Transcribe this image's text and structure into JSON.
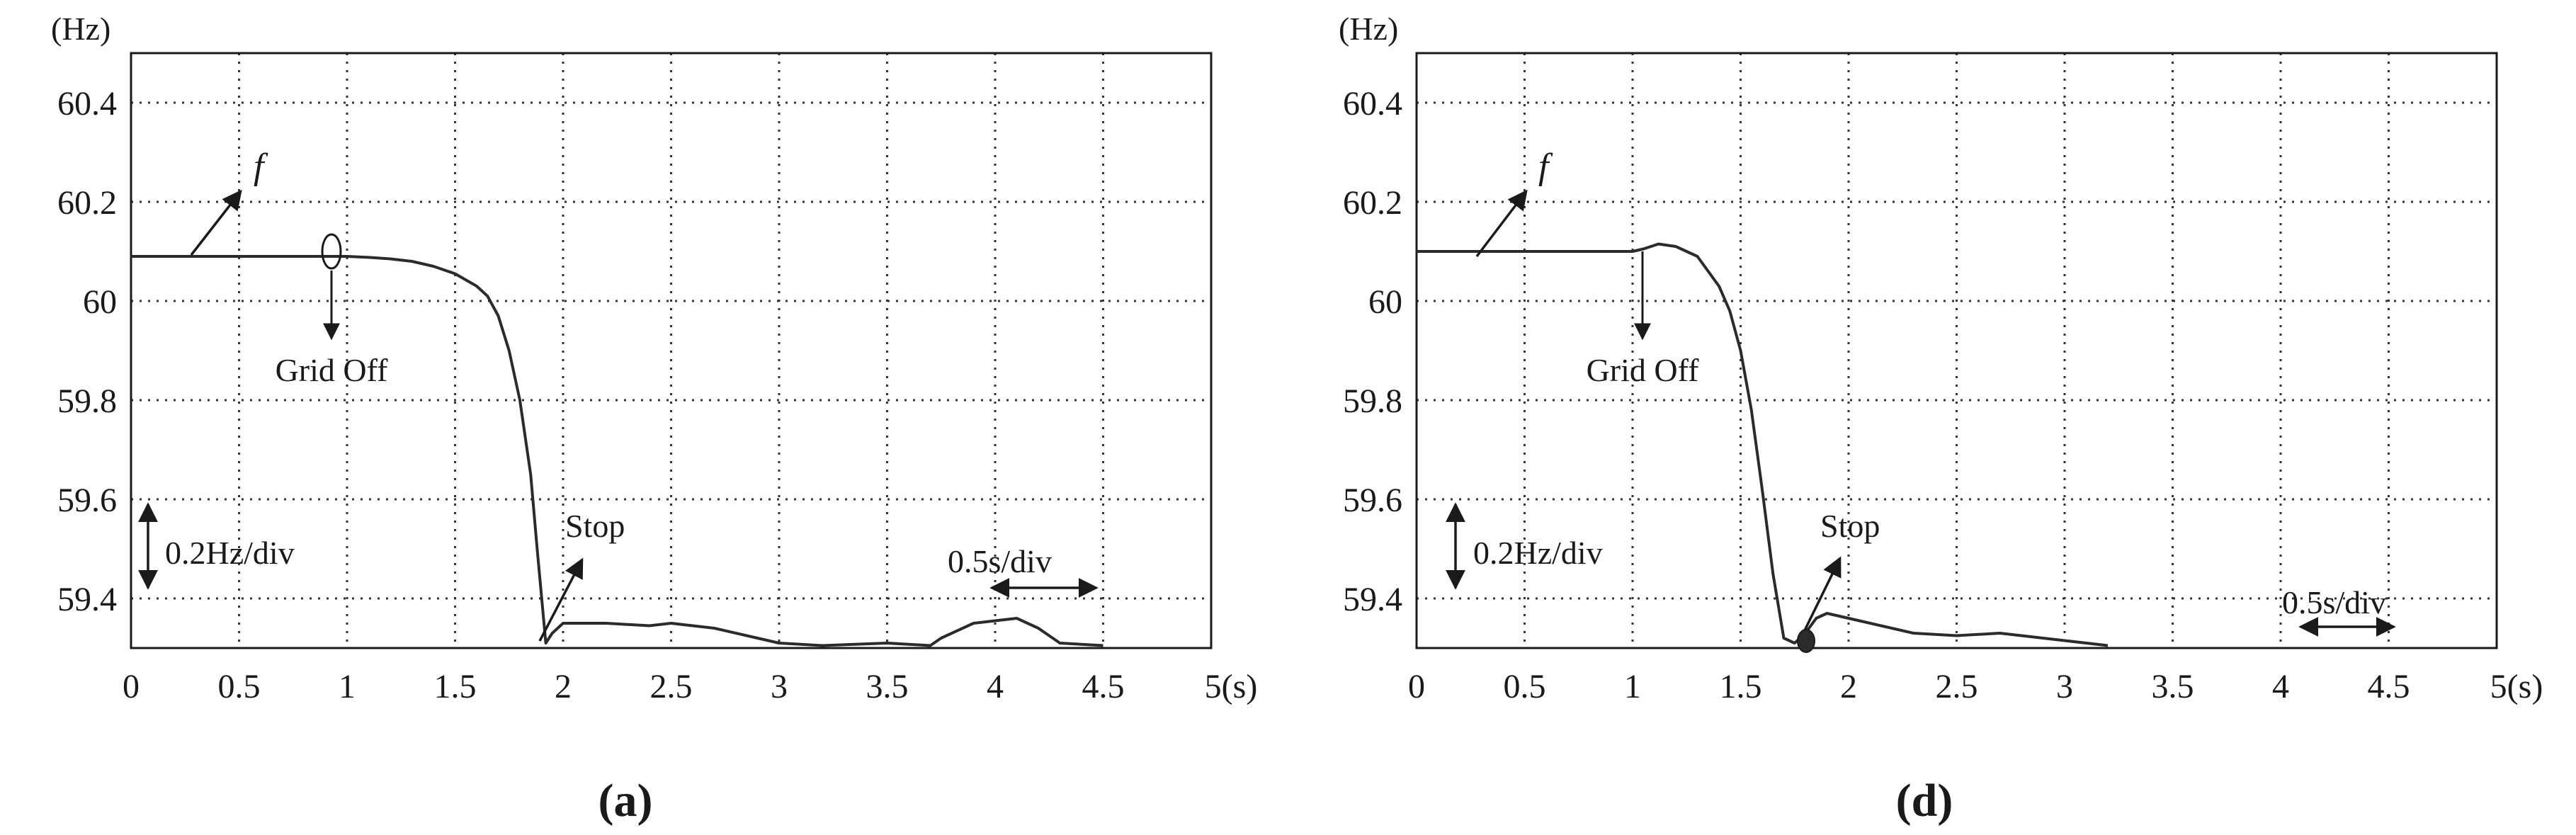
{
  "chart_data": [
    {
      "type": "line",
      "panel_label": "(a)",
      "ylabel": "(Hz)",
      "xlabel": "(s)",
      "xlim": [
        0,
        5
      ],
      "ylim": [
        59.3,
        60.5
      ],
      "x_ticks": [
        0,
        0.5,
        1,
        1.5,
        2,
        2.5,
        3,
        3.5,
        4,
        4.5,
        5
      ],
      "x_tick_labels": [
        "0",
        "0.5",
        "1",
        "1.5",
        "2",
        "2.5",
        "3",
        "3.5",
        "4",
        "4.5",
        "5(s)"
      ],
      "y_ticks": [
        59.4,
        59.6,
        59.8,
        60,
        60.2,
        60.4
      ],
      "y_tick_labels": [
        "59.4",
        "59.6",
        "59.8",
        "60",
        "60.2",
        "60.4"
      ],
      "grid": true,
      "series": [
        {
          "name": "f",
          "points": [
            [
              0,
              60.09
            ],
            [
              0.5,
              60.09
            ],
            [
              1.0,
              60.09
            ],
            [
              1.1,
              60.088
            ],
            [
              1.2,
              60.085
            ],
            [
              1.3,
              60.08
            ],
            [
              1.4,
              60.07
            ],
            [
              1.5,
              60.055
            ],
            [
              1.6,
              60.03
            ],
            [
              1.65,
              60.01
            ],
            [
              1.7,
              59.97
            ],
            [
              1.75,
              59.9
            ],
            [
              1.8,
              59.8
            ],
            [
              1.85,
              59.65
            ],
            [
              1.88,
              59.5
            ],
            [
              1.92,
              59.31
            ],
            [
              1.95,
              59.33
            ],
            [
              2.0,
              59.35
            ],
            [
              2.2,
              59.35
            ],
            [
              2.4,
              59.345
            ],
            [
              2.5,
              59.35
            ],
            [
              2.7,
              59.34
            ],
            [
              2.9,
              59.32
            ],
            [
              3.0,
              59.31
            ],
            [
              3.2,
              59.305
            ],
            [
              3.5,
              59.31
            ],
            [
              3.7,
              59.305
            ],
            [
              3.75,
              59.32
            ],
            [
              3.9,
              59.35
            ],
            [
              4.0,
              59.355
            ],
            [
              4.1,
              59.36
            ],
            [
              4.2,
              59.34
            ],
            [
              4.3,
              59.31
            ],
            [
              4.5,
              59.305
            ]
          ]
        }
      ],
      "annotations": {
        "signal": "f",
        "event": "Grid Off",
        "stop": "Stop",
        "y_scale": "0.2Hz/div",
        "x_scale": "0.5s/div"
      }
    },
    {
      "type": "line",
      "panel_label": "(d)",
      "ylabel": "(Hz)",
      "xlabel": "(s)",
      "xlim": [
        0,
        5
      ],
      "ylim": [
        59.3,
        60.5
      ],
      "x_ticks": [
        0,
        0.5,
        1,
        1.5,
        2,
        2.5,
        3,
        3.5,
        4,
        4.5,
        5
      ],
      "x_tick_labels": [
        "0",
        "0.5",
        "1",
        "1.5",
        "2",
        "2.5",
        "3",
        "3.5",
        "4",
        "4.5",
        "5(s)"
      ],
      "y_ticks": [
        59.4,
        59.6,
        59.8,
        60,
        60.2,
        60.4
      ],
      "y_tick_labels": [
        "59.4",
        "59.6",
        "59.8",
        "60",
        "60.2",
        "60.4"
      ],
      "grid": true,
      "series": [
        {
          "name": "f",
          "points": [
            [
              0,
              60.1
            ],
            [
              0.5,
              60.1
            ],
            [
              1.0,
              60.1
            ],
            [
              1.05,
              60.105
            ],
            [
              1.12,
              60.115
            ],
            [
              1.2,
              60.11
            ],
            [
              1.3,
              60.09
            ],
            [
              1.35,
              60.06
            ],
            [
              1.4,
              60.03
            ],
            [
              1.45,
              59.98
            ],
            [
              1.5,
              59.9
            ],
            [
              1.55,
              59.78
            ],
            [
              1.6,
              59.62
            ],
            [
              1.65,
              59.45
            ],
            [
              1.7,
              59.32
            ],
            [
              1.75,
              59.31
            ],
            [
              1.8,
              59.33
            ],
            [
              1.85,
              59.36
            ],
            [
              1.9,
              59.37
            ],
            [
              2.0,
              59.36
            ],
            [
              2.1,
              59.35
            ],
            [
              2.2,
              59.34
            ],
            [
              2.3,
              59.33
            ],
            [
              2.5,
              59.325
            ],
            [
              2.7,
              59.33
            ],
            [
              2.9,
              59.32
            ],
            [
              3.0,
              59.315
            ],
            [
              3.2,
              59.305
            ]
          ]
        }
      ],
      "annotations": {
        "signal": "f",
        "event": "Grid Off",
        "stop": "Stop",
        "y_scale": "0.2Hz/div",
        "x_scale": "0.5s/div"
      }
    }
  ]
}
